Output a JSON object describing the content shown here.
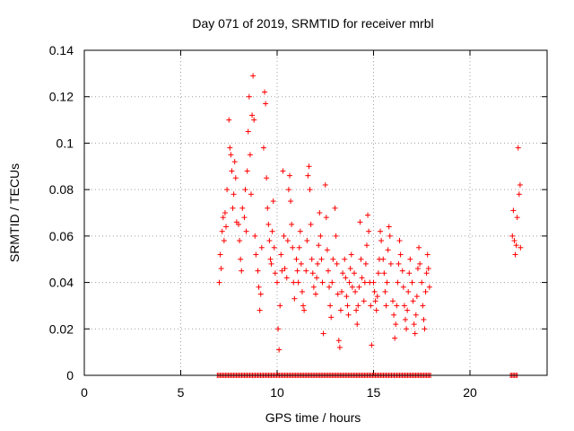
{
  "chart_data": {
    "type": "scatter",
    "title": "Day 071 of 2019, SRMTID for receiver mrbl",
    "xlabel": "GPS time / hours",
    "ylabel": "SRMTID / TECUs",
    "xlim": [
      0,
      24
    ],
    "ylim": [
      0,
      0.14
    ],
    "xticks": [
      0,
      5,
      10,
      15,
      20
    ],
    "xtick_labels": [
      "0",
      "5",
      "10",
      "15",
      "20"
    ],
    "yticks": [
      0,
      0.02,
      0.04,
      0.06,
      0.08,
      0.1,
      0.12,
      0.14
    ],
    "ytick_labels": [
      "0",
      "0.02",
      "0.04",
      "0.06",
      "0.08",
      "0.1",
      "0.12",
      "0.14"
    ],
    "grid": true,
    "marker": "+",
    "series": [
      {
        "name": "SRMTID",
        "color": "#ff0000",
        "points": [
          [
            7.0,
            0.04
          ],
          [
            7.05,
            0.052
          ],
          [
            7.1,
            0.046
          ],
          [
            7.15,
            0.062
          ],
          [
            7.2,
            0.068
          ],
          [
            7.25,
            0.058
          ],
          [
            7.3,
            0.07
          ],
          [
            7.35,
            0.064
          ],
          [
            7.4,
            0.08
          ],
          [
            7.5,
            0.11
          ],
          [
            7.55,
            0.098
          ],
          [
            7.6,
            0.095
          ],
          [
            7.65,
            0.088
          ],
          [
            7.7,
            0.072
          ],
          [
            7.75,
            0.078
          ],
          [
            7.8,
            0.092
          ],
          [
            7.85,
            0.085
          ],
          [
            7.9,
            0.066
          ],
          [
            8.0,
            0.065
          ],
          [
            8.05,
            0.058
          ],
          [
            8.1,
            0.05
          ],
          [
            8.15,
            0.045
          ],
          [
            8.2,
            0.072
          ],
          [
            8.3,
            0.068
          ],
          [
            8.35,
            0.08
          ],
          [
            8.4,
            0.062
          ],
          [
            8.45,
            0.088
          ],
          [
            8.5,
            0.105
          ],
          [
            8.55,
            0.12
          ],
          [
            8.6,
            0.095
          ],
          [
            8.65,
            0.078
          ],
          [
            8.7,
            0.112
          ],
          [
            8.75,
            0.129
          ],
          [
            8.8,
            0.11
          ],
          [
            8.85,
            0.06
          ],
          [
            8.9,
            0.052
          ],
          [
            9.0,
            0.045
          ],
          [
            9.05,
            0.038
          ],
          [
            9.1,
            0.028
          ],
          [
            9.15,
            0.035
          ],
          [
            9.2,
            0.055
          ],
          [
            9.3,
            0.098
          ],
          [
            9.35,
            0.122
          ],
          [
            9.4,
            0.117
          ],
          [
            9.45,
            0.085
          ],
          [
            9.5,
            0.072
          ],
          [
            9.55,
            0.065
          ],
          [
            9.6,
            0.058
          ],
          [
            9.65,
            0.05
          ],
          [
            9.7,
            0.048
          ],
          [
            9.75,
            0.062
          ],
          [
            9.8,
            0.075
          ],
          [
            9.85,
            0.055
          ],
          [
            9.9,
            0.044
          ],
          [
            10.0,
            0.04
          ],
          [
            10.05,
            0.02
          ],
          [
            10.1,
            0.011
          ],
          [
            10.15,
            0.03
          ],
          [
            10.2,
            0.052
          ],
          [
            10.25,
            0.045
          ],
          [
            10.3,
            0.088
          ],
          [
            10.35,
            0.06
          ],
          [
            10.4,
            0.046
          ],
          [
            10.5,
            0.042
          ],
          [
            10.55,
            0.058
          ],
          [
            10.6,
            0.08
          ],
          [
            10.65,
            0.086
          ],
          [
            10.7,
            0.075
          ],
          [
            10.75,
            0.065
          ],
          [
            10.8,
            0.055
          ],
          [
            10.85,
            0.04
          ],
          [
            10.9,
            0.033
          ],
          [
            11.0,
            0.05
          ],
          [
            11.05,
            0.045
          ],
          [
            11.1,
            0.04
          ],
          [
            11.15,
            0.055
          ],
          [
            11.2,
            0.062
          ],
          [
            11.25,
            0.048
          ],
          [
            11.3,
            0.036
          ],
          [
            11.35,
            0.03
          ],
          [
            11.4,
            0.028
          ],
          [
            11.5,
            0.045
          ],
          [
            11.55,
            0.058
          ],
          [
            11.6,
            0.086
          ],
          [
            11.65,
            0.09
          ],
          [
            11.7,
            0.08
          ],
          [
            11.75,
            0.065
          ],
          [
            11.8,
            0.05
          ],
          [
            11.85,
            0.044
          ],
          [
            11.9,
            0.038
          ],
          [
            12.0,
            0.035
          ],
          [
            12.05,
            0.042
          ],
          [
            12.1,
            0.048
          ],
          [
            12.15,
            0.056
          ],
          [
            12.2,
            0.07
          ],
          [
            12.25,
            0.06
          ],
          [
            12.3,
            0.05
          ],
          [
            12.35,
            0.04
          ],
          [
            12.4,
            0.018
          ],
          [
            12.5,
            0.082
          ],
          [
            12.55,
            0.068
          ],
          [
            12.6,
            0.054
          ],
          [
            12.65,
            0.045
          ],
          [
            12.7,
            0.038
          ],
          [
            12.75,
            0.03
          ],
          [
            12.8,
            0.025
          ],
          [
            12.85,
            0.04
          ],
          [
            12.9,
            0.05
          ],
          [
            13.0,
            0.072
          ],
          [
            13.05,
            0.06
          ],
          [
            13.1,
            0.048
          ],
          [
            13.15,
            0.035
          ],
          [
            13.2,
            0.015
          ],
          [
            13.25,
            0.012
          ],
          [
            13.3,
            0.028
          ],
          [
            13.35,
            0.036
          ],
          [
            13.4,
            0.044
          ],
          [
            13.5,
            0.05
          ],
          [
            13.55,
            0.042
          ],
          [
            13.6,
            0.034
          ],
          [
            13.65,
            0.03
          ],
          [
            13.7,
            0.026
          ],
          [
            13.75,
            0.04
          ],
          [
            13.8,
            0.046
          ],
          [
            13.85,
            0.052
          ],
          [
            13.9,
            0.038
          ],
          [
            14.0,
            0.044
          ],
          [
            14.05,
            0.036
          ],
          [
            14.1,
            0.028
          ],
          [
            14.15,
            0.022
          ],
          [
            14.2,
            0.03
          ],
          [
            14.25,
            0.038
          ],
          [
            14.3,
            0.066
          ],
          [
            14.35,
            0.05
          ],
          [
            14.4,
            0.042
          ],
          [
            14.5,
            0.032
          ],
          [
            14.55,
            0.04
          ],
          [
            14.6,
            0.048
          ],
          [
            14.65,
            0.056
          ],
          [
            14.7,
            0.069
          ],
          [
            14.75,
            0.062
          ],
          [
            14.8,
            0.04
          ],
          [
            14.85,
            0.03
          ],
          [
            14.9,
            0.013
          ],
          [
            15.0,
            0.04
          ],
          [
            15.05,
            0.036
          ],
          [
            15.1,
            0.032
          ],
          [
            15.15,
            0.028
          ],
          [
            15.2,
            0.034
          ],
          [
            15.25,
            0.044
          ],
          [
            15.3,
            0.05
          ],
          [
            15.35,
            0.062
          ],
          [
            15.4,
            0.058
          ],
          [
            15.5,
            0.05
          ],
          [
            15.55,
            0.044
          ],
          [
            15.6,
            0.036
          ],
          [
            15.65,
            0.03
          ],
          [
            15.7,
            0.04
          ],
          [
            15.75,
            0.054
          ],
          [
            15.8,
            0.064
          ],
          [
            15.85,
            0.06
          ],
          [
            15.9,
            0.048
          ],
          [
            16.0,
            0.032
          ],
          [
            16.05,
            0.026
          ],
          [
            16.1,
            0.016
          ],
          [
            16.15,
            0.022
          ],
          [
            16.2,
            0.03
          ],
          [
            16.25,
            0.04
          ],
          [
            16.3,
            0.048
          ],
          [
            16.35,
            0.058
          ],
          [
            16.4,
            0.052
          ],
          [
            16.5,
            0.045
          ],
          [
            16.55,
            0.038
          ],
          [
            16.6,
            0.03
          ],
          [
            16.65,
            0.024
          ],
          [
            16.7,
            0.02
          ],
          [
            16.75,
            0.028
          ],
          [
            16.8,
            0.036
          ],
          [
            16.85,
            0.044
          ],
          [
            16.9,
            0.05
          ],
          [
            17.0,
            0.04
          ],
          [
            17.05,
            0.032
          ],
          [
            17.1,
            0.022
          ],
          [
            17.15,
            0.018
          ],
          [
            17.2,
            0.026
          ],
          [
            17.25,
            0.034
          ],
          [
            17.3,
            0.046
          ],
          [
            17.35,
            0.055
          ],
          [
            17.4,
            0.048
          ],
          [
            17.5,
            0.04
          ],
          [
            17.55,
            0.03
          ],
          [
            17.6,
            0.024
          ],
          [
            17.65,
            0.02
          ],
          [
            17.7,
            0.036
          ],
          [
            17.75,
            0.044
          ],
          [
            17.8,
            0.052
          ],
          [
            17.85,
            0.046
          ],
          [
            17.9,
            0.038
          ],
          [
            22.2,
            0.06
          ],
          [
            22.25,
            0.071
          ],
          [
            22.3,
            0.058
          ],
          [
            22.35,
            0.052
          ],
          [
            22.4,
            0.056
          ],
          [
            22.45,
            0.068
          ],
          [
            22.5,
            0.098
          ],
          [
            22.55,
            0.078
          ],
          [
            22.6,
            0.082
          ],
          [
            22.62,
            0.055
          ]
        ]
      }
    ],
    "zero_band": {
      "color": "#ff0000",
      "ranges": [
        [
          6.9,
          18.0
        ],
        [
          22.1,
          22.5
        ]
      ],
      "value": 0
    }
  }
}
